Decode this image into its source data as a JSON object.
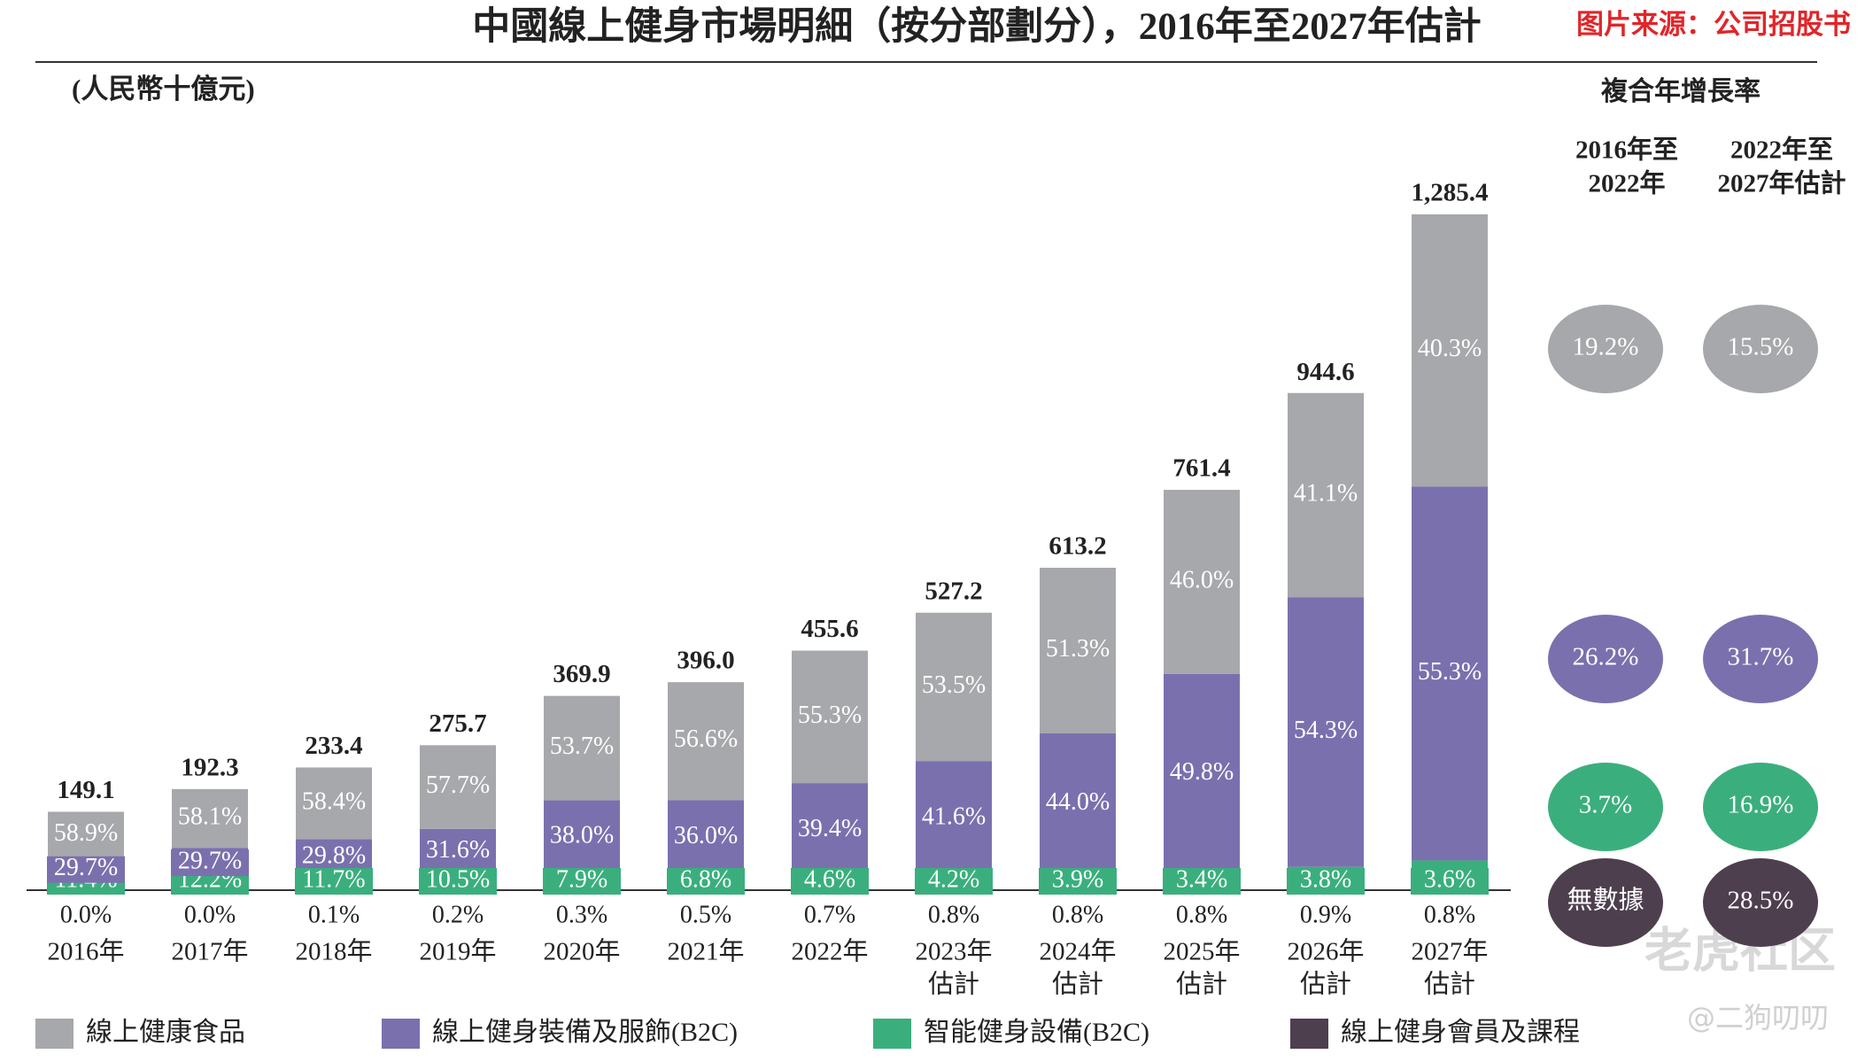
{
  "chart_data": {
    "type": "stacked_bar",
    "title": "中國線上健身市場明細（按分部劃分），2016年至2027年估計",
    "source": "图片来源：公司招股书",
    "unit": "(人民幣十億元)",
    "categories": [
      [
        "2016年"
      ],
      [
        "2017年"
      ],
      [
        "2018年"
      ],
      [
        "2019年"
      ],
      [
        "2020年"
      ],
      [
        "2021年"
      ],
      [
        "2022年"
      ],
      [
        "2023年",
        "估計"
      ],
      [
        "2024年",
        "估計"
      ],
      [
        "2025年",
        "估計"
      ],
      [
        "2026年",
        "估計"
      ],
      [
        "2027年",
        "估計"
      ]
    ],
    "totals": {
      "values": [
        149.1,
        192.3,
        233.4,
        275.7,
        369.9,
        396.0,
        455.6,
        527.2,
        613.2,
        761.4,
        944.6,
        1285.4
      ],
      "value_labels": [
        "149.1",
        "192.3",
        "233.4",
        "275.7",
        "369.9",
        "396.0",
        "455.6",
        "527.2",
        "613.2",
        "761.4",
        "944.6",
        "1,285.4"
      ]
    },
    "series": [
      {
        "name": "線上健康食品",
        "color": "#a6a8ab",
        "values": [
          58.9,
          58.1,
          58.4,
          57.7,
          53.7,
          56.6,
          55.3,
          53.5,
          51.3,
          46.0,
          41.1,
          40.3
        ],
        "value_labels": [
          "58.9%",
          "58.1%",
          "58.4%",
          "57.7%",
          "53.7%",
          "56.6%",
          "55.3%",
          "53.5%",
          "51.3%",
          "46.0%",
          "41.1%",
          "40.3%"
        ]
      },
      {
        "name": "線上健身裝備及服飾(B2C)",
        "color": "#7b70ae",
        "values": [
          29.7,
          29.7,
          29.8,
          31.6,
          38.0,
          36.0,
          39.4,
          41.6,
          44.0,
          49.8,
          54.3,
          55.3
        ],
        "value_labels": [
          "29.7%",
          "29.7%",
          "29.8%",
          "31.6%",
          "38.0%",
          "36.0%",
          "39.4%",
          "41.6%",
          "44.0%",
          "49.8%",
          "54.3%",
          "55.3%"
        ]
      },
      {
        "name": "智能健身設備(B2C)",
        "color": "#3aaf7d",
        "values": [
          11.4,
          12.2,
          11.7,
          10.5,
          7.9,
          6.8,
          4.6,
          4.2,
          3.9,
          3.4,
          3.8,
          3.6
        ],
        "value_labels": [
          "11.4%",
          "12.2%",
          "11.7%",
          "10.5%",
          "7.9%",
          "6.8%",
          "4.6%",
          "4.2%",
          "3.9%",
          "3.4%",
          "3.8%",
          "3.6%"
        ]
      },
      {
        "name": "線上健身會員及課程",
        "color": "#4e3f4f",
        "values": [
          0.0,
          0.0,
          0.1,
          0.2,
          0.3,
          0.5,
          0.7,
          0.8,
          0.8,
          0.8,
          0.9,
          0.8
        ],
        "value_labels": [
          "0.0%",
          "0.0%",
          "0.1%",
          "0.2%",
          "0.3%",
          "0.5%",
          "0.7%",
          "0.8%",
          "0.8%",
          "0.8%",
          "0.9%",
          "0.8%"
        ]
      }
    ],
    "cagr": {
      "title": "複合年增長率",
      "periods": [
        [
          "2016年至",
          "2022年"
        ],
        [
          "2022年至",
          "2027年估計"
        ]
      ],
      "rows": [
        {
          "values": [
            19.2,
            15.5
          ],
          "value_labels": [
            "19.2%",
            "15.5%"
          ]
        },
        {
          "values": [
            26.2,
            31.7
          ],
          "value_labels": [
            "26.2%",
            "31.7%"
          ]
        },
        {
          "values": [
            3.7,
            16.9
          ],
          "value_labels": [
            "3.7%",
            "16.9%"
          ]
        },
        {
          "values": [
            null,
            28.5
          ],
          "value_labels": [
            "無數據",
            "28.5%"
          ]
        }
      ]
    },
    "watermark": [
      "老虎社区",
      "@二狗叨叨"
    ]
  }
}
